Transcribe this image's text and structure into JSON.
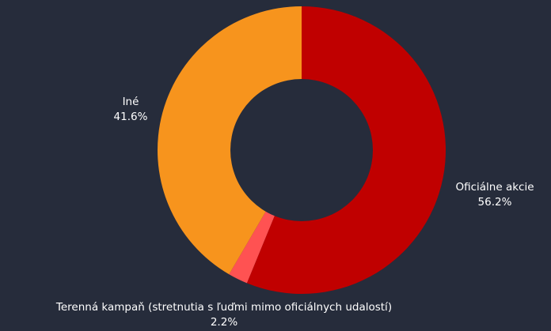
{
  "colors": {
    "background": "#262c3b",
    "hole": "#262c3b"
  },
  "chart_data": {
    "type": "pie",
    "donut": true,
    "categories": [
      "Oficiálne akcie",
      "Terenná kampaň (stretnutia s ľuďmi mimo oficiálnych udalostí)",
      "Iné"
    ],
    "values": [
      56.2,
      2.2,
      41.6
    ],
    "value_labels": [
      "56.2%",
      "2.2%",
      "41.6%"
    ],
    "colors": [
      "#c00000",
      "#ff5252",
      "#f7941d"
    ],
    "start_angle_deg": 0,
    "direction": "clockwise",
    "legend": "none",
    "title": ""
  }
}
